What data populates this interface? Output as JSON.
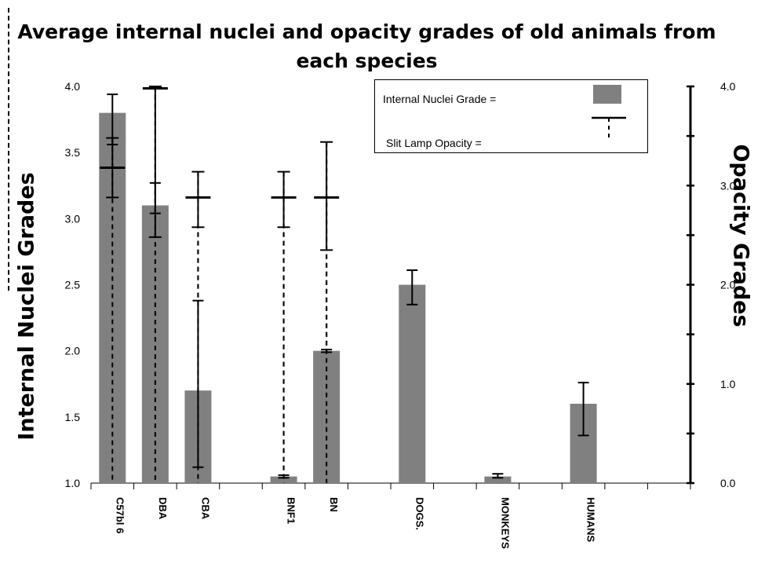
{
  "chart_data": {
    "type": "bar",
    "title": "Average internal nuclei and opacity grades of old animals from each species",
    "ylabel": "Internal Nuclei Grades",
    "y2label": "Opacity Grades",
    "ylim": [
      1.0,
      4.0
    ],
    "y2lim": [
      0.0,
      4.0
    ],
    "yticks": [
      "1.0",
      "1.5",
      "2.0",
      "2.5",
      "3.0",
      "3.5",
      "4.0"
    ],
    "y2ticks": [
      "0.0",
      "1.0",
      "2.0",
      "3.0",
      "4.0"
    ],
    "categories": [
      "C57bl 6",
      "DBA",
      "CBA",
      "",
      "BNF1",
      "BN",
      "",
      "DOGS.",
      "",
      "MONKEYS",
      "",
      "HUMANS",
      "",
      ""
    ],
    "series": [
      {
        "name": "Internal Nuclei Grade",
        "kind": "bar",
        "color": "#808080",
        "values": [
          3.8,
          3.1,
          1.7,
          null,
          1.05,
          2.0,
          null,
          2.5,
          null,
          1.05,
          null,
          1.6,
          null,
          null
        ],
        "error_low": [
          3.56,
          3.04,
          1.12,
          null,
          1.04,
          1.99,
          null,
          2.35,
          null,
          1.04,
          null,
          1.36,
          null,
          null
        ],
        "error_high": [
          3.94,
          3.27,
          2.38,
          null,
          1.06,
          2.01,
          null,
          2.61,
          null,
          1.07,
          null,
          1.76,
          null,
          null
        ]
      },
      {
        "name": "Slit Lamp Opacity",
        "kind": "marker",
        "values": [
          3.18,
          3.98,
          2.88,
          null,
          2.88,
          2.88,
          null,
          null,
          null,
          null,
          null,
          null,
          null,
          null
        ],
        "error_low": [
          2.88,
          2.48,
          2.58,
          null,
          2.58,
          2.35,
          null,
          null,
          null,
          null,
          null,
          null,
          null,
          null
        ],
        "error_high": [
          3.48,
          4.0,
          3.14,
          null,
          3.14,
          3.44,
          null,
          null,
          null,
          null,
          null,
          null,
          null,
          null
        ]
      }
    ]
  },
  "legend": {
    "bar_label": "Internal Nuclei Grade =",
    "marker_label": "Slit Lamp Opacity ="
  }
}
